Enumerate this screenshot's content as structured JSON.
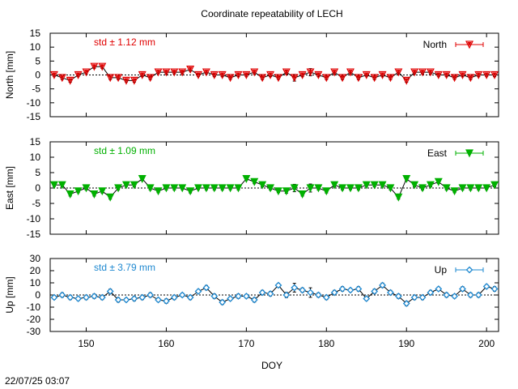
{
  "title": "Coordinate repeatability of LECH",
  "footer_timestamp": "22/07/25 03:07",
  "chart_data": [
    {
      "type": "line",
      "panel": "north",
      "ylabel": "North [mm]",
      "xlabel": "",
      "ylim": [
        -15,
        15
      ],
      "yticks": [
        -15,
        -10,
        -5,
        0,
        5,
        10,
        15
      ],
      "xlim": [
        145.5,
        201.5
      ],
      "xticks": [],
      "std_label": "std ± 1.12 mm",
      "legend": "North",
      "legend_position": "top-right",
      "color": "#e00000",
      "marker": "triangle-down",
      "grid": false,
      "x": [
        146,
        147,
        148,
        149,
        150,
        151,
        152,
        153,
        154,
        155,
        156,
        157,
        158,
        159,
        160,
        161,
        162,
        163,
        164,
        165,
        166,
        167,
        168,
        169,
        170,
        171,
        172,
        173,
        174,
        175,
        176,
        177,
        178,
        179,
        180,
        181,
        182,
        183,
        184,
        185,
        186,
        187,
        188,
        189,
        190,
        191,
        192,
        193,
        194,
        195,
        196,
        197,
        198,
        199,
        200,
        201
      ],
      "values": [
        0,
        -1,
        -2,
        0,
        1,
        3,
        3,
        -1,
        -1,
        -2,
        -2,
        0,
        -1,
        1,
        1,
        1,
        1,
        2,
        0,
        1,
        0,
        0,
        -1,
        0,
        0,
        1,
        -1,
        0,
        -1,
        1,
        -1,
        0,
        1,
        0,
        -1,
        1,
        -1,
        1,
        -1,
        0,
        -1,
        0,
        -1,
        1,
        -2,
        1,
        1,
        1,
        0,
        0,
        -1,
        0,
        -1,
        0,
        0,
        0
      ]
    },
    {
      "type": "line",
      "panel": "east",
      "ylabel": "East [mm]",
      "xlabel": "",
      "ylim": [
        -15,
        15
      ],
      "yticks": [
        -15,
        -10,
        -5,
        0,
        5,
        10,
        15
      ],
      "xlim": [
        145.5,
        201.5
      ],
      "xticks": [],
      "std_label": "std ± 1.09 mm",
      "legend": "East",
      "legend_position": "top-right",
      "color": "#00b000",
      "marker": "triangle-down",
      "grid": false,
      "x": [
        146,
        147,
        148,
        149,
        150,
        151,
        152,
        153,
        154,
        155,
        156,
        157,
        158,
        159,
        160,
        161,
        162,
        163,
        164,
        165,
        166,
        167,
        168,
        169,
        170,
        171,
        172,
        173,
        174,
        175,
        176,
        177,
        178,
        179,
        180,
        181,
        182,
        183,
        184,
        185,
        186,
        187,
        188,
        189,
        190,
        191,
        192,
        193,
        194,
        195,
        196,
        197,
        198,
        199,
        200,
        201
      ],
      "values": [
        1,
        1,
        -2,
        -1,
        0,
        -2,
        -1,
        -3,
        0,
        1,
        1,
        3,
        0,
        -1,
        0,
        0,
        0,
        -1,
        0,
        0,
        0,
        0,
        0,
        0,
        3,
        2,
        1,
        0,
        -1,
        -1,
        0,
        -2,
        0,
        0,
        -1,
        1,
        0,
        0,
        0,
        1,
        1,
        1,
        0,
        -3,
        3,
        1,
        0,
        1,
        2,
        0,
        -1,
        0,
        0,
        0,
        0,
        1
      ]
    },
    {
      "type": "line",
      "panel": "up",
      "ylabel": "Up [mm]",
      "xlabel": "DOY",
      "ylim": [
        -30,
        30
      ],
      "yticks": [
        -30,
        -20,
        -10,
        0,
        10,
        20,
        30
      ],
      "xlim": [
        145.5,
        201.5
      ],
      "xticks": [
        150,
        160,
        170,
        180,
        190,
        200
      ],
      "std_label": "std ± 3.79 mm",
      "legend": "Up",
      "legend_position": "top-right",
      "color": "#1e88d0",
      "marker": "diamond-open",
      "grid": false,
      "x": [
        146,
        147,
        148,
        149,
        150,
        151,
        152,
        153,
        154,
        155,
        156,
        157,
        158,
        159,
        160,
        161,
        162,
        163,
        164,
        165,
        166,
        167,
        168,
        169,
        170,
        171,
        172,
        173,
        174,
        175,
        176,
        177,
        178,
        179,
        180,
        181,
        182,
        183,
        184,
        185,
        186,
        187,
        188,
        189,
        190,
        191,
        192,
        193,
        194,
        195,
        196,
        197,
        198,
        199,
        200,
        201
      ],
      "values": [
        -2,
        0,
        -2,
        -3,
        -2,
        -1,
        -2,
        3,
        -4,
        -4,
        -3,
        -2,
        0,
        -4,
        -5,
        -2,
        0,
        -2,
        3,
        6,
        -1,
        -6,
        -3,
        -1,
        -1,
        -4,
        2,
        1,
        8,
        0,
        6,
        4,
        2,
        0,
        -2,
        2,
        5,
        4,
        5,
        -3,
        3,
        8,
        2,
        -1,
        -7,
        -2,
        -2,
        2,
        5,
        0,
        -1,
        5,
        0,
        0,
        7,
        5
      ]
    }
  ]
}
